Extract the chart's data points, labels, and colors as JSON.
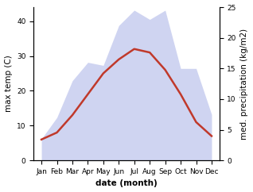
{
  "months": [
    "Jan",
    "Feb",
    "Mar",
    "Apr",
    "May",
    "Jun",
    "Jul",
    "Aug",
    "Sep",
    "Oct",
    "Nov",
    "Dec"
  ],
  "temp": [
    6,
    8,
    13,
    19,
    25,
    29,
    32,
    31,
    26,
    19,
    11,
    7
  ],
  "precip": [
    3.5,
    7,
    13,
    16,
    15.5,
    22,
    24.5,
    23,
    24.5,
    15,
    15,
    7.5
  ],
  "temp_color": "#c0392b",
  "area_facecolor": "#b0b8e8",
  "area_alpha": 0.6,
  "ylim_left": [
    0,
    44
  ],
  "ylim_right": [
    0,
    25
  ],
  "yticks_left": [
    0,
    10,
    20,
    30,
    40
  ],
  "yticks_right": [
    0,
    5,
    10,
    15,
    20,
    25
  ],
  "ylabel_left": "max temp (C)",
  "ylabel_right": "med. precipitation (kg/m2)",
  "xlabel": "date (month)",
  "tick_fontsize": 6.5,
  "label_fontsize": 7.5,
  "linewidth": 1.8
}
